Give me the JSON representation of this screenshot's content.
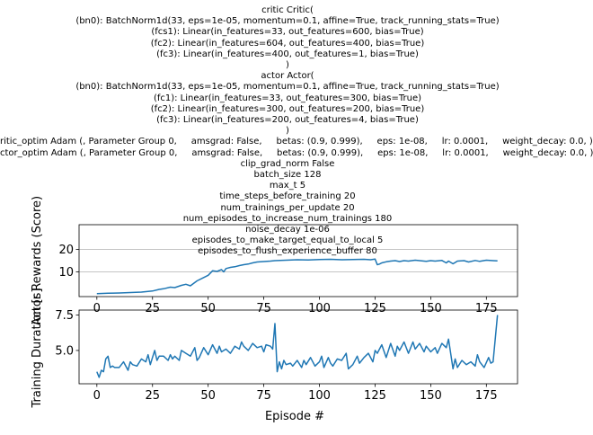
{
  "config_lines": [
    "critic Critic(",
    "(bn0): BatchNorm1d(33, eps=1e-05, momentum=0.1, affine=True, track_running_stats=True)",
    "(fcs1): Linear(in_features=33, out_features=600, bias=True)",
    "(fc2): Linear(in_features=604, out_features=400, bias=True)",
    "(fc3): Linear(in_features=400, out_features=1, bias=True)",
    ")",
    "actor Actor(",
    "(bn0): BatchNorm1d(33, eps=1e-05, momentum=0.1, affine=True, track_running_stats=True)",
    "(fc1): Linear(in_features=33, out_features=300, bias=True)",
    "(fc2): Linear(in_features=300, out_features=200, bias=True)",
    "(fc3): Linear(in_features=200, out_features=4, bias=True)",
    ")",
    "ritic_optim Adam (, Parameter Group 0,     amsgrad: False,     betas: (0.9, 0.999),     eps: 1e-08,     lr: 0.0001,     weight_decay: 0.0, )",
    "ctor_optim Adam (, Parameter Group 0,     amsgrad: False,     betas: (0.9, 0.999),     eps: 1e-08,     lr: 0.0001,     weight_decay: 0.0, )",
    "clip_grad_norm False",
    "batch_size 128",
    "max_t 5",
    "time_steps_before_training 20",
    "num_trainings_per_update 20",
    "num_episodes_to_increase_num_trainings 180",
    "noise_decay 1e-06",
    "episodes_to_make_target_equal_to_local 5",
    "episodes_to_flush_experience_buffer 80"
  ],
  "chart_data": [
    {
      "type": "line",
      "title": "",
      "xlabel": "",
      "ylabel": "Actor Rewards (Score)",
      "xlim": [
        -8,
        189
      ],
      "ylim": [
        -1,
        31
      ],
      "xticks": [
        0,
        25,
        50,
        75,
        100,
        125,
        150,
        175
      ],
      "yticks": [
        10,
        20
      ],
      "grid": "y",
      "color": "#1f77b4",
      "series": [
        {
          "x": [
            0,
            5,
            10,
            15,
            20,
            25,
            28,
            30,
            33,
            35,
            38,
            40,
            42,
            45,
            48,
            50,
            52,
            54,
            56,
            57,
            58,
            60,
            62,
            64,
            66,
            68,
            70,
            72,
            75,
            78,
            80,
            85,
            90,
            95,
            100,
            105,
            110,
            115,
            120,
            123,
            125,
            126,
            127,
            128,
            130,
            132,
            134,
            136,
            138,
            140,
            143,
            145,
            148,
            150,
            152,
            155,
            157,
            158,
            160,
            162,
            165,
            167,
            170,
            172,
            175,
            178,
            180
          ],
          "y": [
            0.3,
            0.5,
            0.6,
            0.8,
            1.0,
            1.5,
            2.2,
            2.5,
            3.2,
            3.0,
            4.0,
            4.5,
            3.8,
            6.0,
            7.5,
            8.5,
            10.5,
            10.2,
            11.0,
            10.0,
            11.5,
            12.0,
            12.3,
            12.8,
            13.2,
            13.5,
            14.0,
            14.4,
            14.6,
            14.8,
            15.0,
            15.2,
            15.4,
            15.3,
            15.5,
            15.6,
            15.4,
            15.5,
            15.6,
            15.4,
            15.7,
            13.2,
            13.5,
            14.0,
            14.5,
            14.8,
            15.0,
            14.6,
            15.0,
            14.8,
            15.2,
            15.0,
            14.7,
            15.0,
            14.8,
            15.1,
            14.0,
            14.8,
            13.6,
            14.8,
            15.0,
            14.4,
            15.1,
            14.7,
            15.2,
            15.0,
            14.9
          ]
        }
      ]
    },
    {
      "type": "line",
      "title": "",
      "xlabel": "Episode #",
      "ylabel": "Training Duration [s]",
      "xlim": [
        -8,
        189
      ],
      "ylim": [
        2.65,
        7.85
      ],
      "xticks": [
        0,
        25,
        50,
        75,
        100,
        125,
        150,
        175
      ],
      "yticks": [
        5.0,
        7.5
      ],
      "grid": "none",
      "color": "#1f77b4",
      "series": [
        {
          "x": [
            0,
            1,
            2,
            3,
            4,
            5,
            6,
            7,
            8,
            10,
            12,
            14,
            15,
            16,
            18,
            20,
            22,
            23,
            24,
            25,
            26,
            27,
            28,
            30,
            32,
            33,
            34,
            35,
            37,
            38,
            40,
            42,
            44,
            45,
            46,
            48,
            50,
            52,
            54,
            55,
            56,
            58,
            60,
            62,
            64,
            65,
            66,
            68,
            70,
            72,
            74,
            75,
            76,
            78,
            79,
            80,
            81,
            82,
            83,
            84,
            85,
            87,
            88,
            90,
            92,
            93,
            94,
            96,
            98,
            100,
            101,
            102,
            104,
            105,
            106,
            108,
            110,
            112,
            113,
            115,
            117,
            118,
            120,
            122,
            124,
            125,
            126,
            128,
            130,
            132,
            134,
            135,
            136,
            138,
            140,
            142,
            143,
            145,
            147,
            148,
            150,
            152,
            153,
            155,
            157,
            158,
            160,
            161,
            162,
            164,
            166,
            168,
            170,
            171,
            172,
            174,
            176,
            177,
            178,
            180
          ],
          "y": [
            3.5,
            3.1,
            3.6,
            3.5,
            4.4,
            4.6,
            3.8,
            3.9,
            3.8,
            3.8,
            4.2,
            3.6,
            4.2,
            4.0,
            3.9,
            4.4,
            4.2,
            4.7,
            4.0,
            4.5,
            5.0,
            4.3,
            4.6,
            4.6,
            4.3,
            4.7,
            4.4,
            4.6,
            4.3,
            5.0,
            4.8,
            4.6,
            5.2,
            4.3,
            4.5,
            5.2,
            4.7,
            5.4,
            4.8,
            5.3,
            4.9,
            5.1,
            4.8,
            5.3,
            5.1,
            5.6,
            5.3,
            5.0,
            5.5,
            5.2,
            5.3,
            4.9,
            5.4,
            5.3,
            5.1,
            6.9,
            3.5,
            4.2,
            3.7,
            4.3,
            4.0,
            4.1,
            3.9,
            4.3,
            3.8,
            4.3,
            4.0,
            4.5,
            3.9,
            4.2,
            4.6,
            3.8,
            4.5,
            4.1,
            3.9,
            4.4,
            4.3,
            4.8,
            3.7,
            4.0,
            4.6,
            4.1,
            4.5,
            4.8,
            4.2,
            5.0,
            4.8,
            5.4,
            4.5,
            5.5,
            4.6,
            5.3,
            5.0,
            5.6,
            4.8,
            5.6,
            5.1,
            5.5,
            4.9,
            5.3,
            4.9,
            5.2,
            4.8,
            5.5,
            5.2,
            5.8,
            3.7,
            4.4,
            3.8,
            4.3,
            4.0,
            4.2,
            3.9,
            4.7,
            4.2,
            3.8,
            4.5,
            4.1,
            4.2,
            7.5
          ]
        }
      ]
    }
  ]
}
